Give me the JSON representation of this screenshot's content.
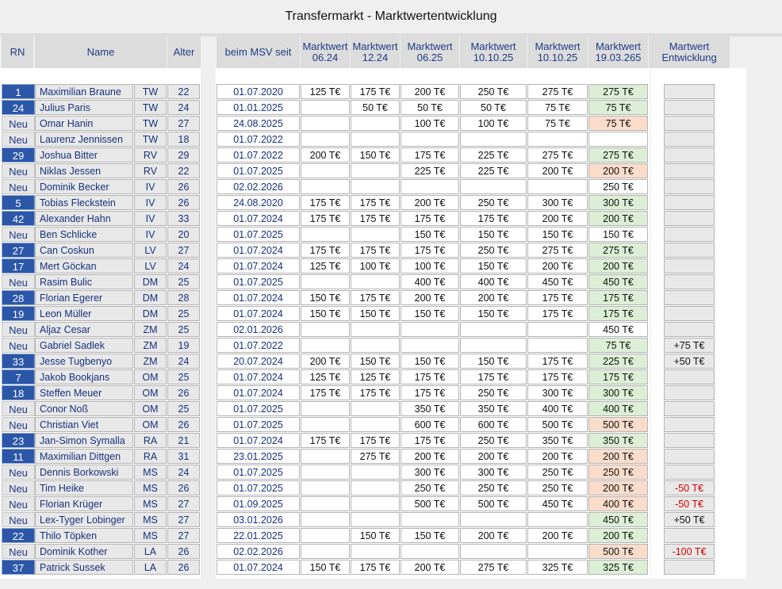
{
  "title": "Transfermarkt - Marktwertentwicklung",
  "headers": {
    "rn": "RN",
    "name": "Name",
    "age": "Alter",
    "since": "beim MSV seit",
    "values": [
      "Marktwert\n06.24",
      "Marktwert\n12.24",
      "Marktwert\n06.25",
      "Marktwert\n10.10.25",
      "Marktwert\n10.10.25",
      "Marktwert\n19.03.265"
    ],
    "dev": "Martwert\nEntwicklung"
  },
  "colors": {
    "rn_blue": "#2c57a8",
    "current_up": "#dcefd6",
    "current_down": "#fadccb",
    "negative_text": "#d00000"
  },
  "rows": [
    {
      "rn": "1",
      "name": "Maximilian Braune",
      "pos": "TW",
      "age": "22",
      "since": "01.07.2020",
      "v": [
        "125 T€",
        "175 T€",
        "200 T€",
        "250 T€",
        "275 T€",
        "275 T€"
      ],
      "cur": "green",
      "dev": ""
    },
    {
      "rn": "24",
      "name": "Julius Paris",
      "pos": "TW",
      "age": "24",
      "since": "01.01.2025",
      "v": [
        "",
        "50 T€",
        "50 T€",
        "50 T€",
        "75 T€",
        "75 T€"
      ],
      "cur": "green",
      "dev": ""
    },
    {
      "rn": "Neu",
      "name": "Omar Hanin",
      "pos": "TW",
      "age": "27",
      "since": "24.08.2025",
      "v": [
        "",
        "",
        "100 T€",
        "100 T€",
        "75 T€",
        "75 T€"
      ],
      "cur": "orange",
      "dev": ""
    },
    {
      "rn": "Neu",
      "name": "Laurenz Jennissen",
      "pos": "TW",
      "age": "18",
      "since": "01.07.2022",
      "v": [
        "",
        "",
        "",
        "",
        "",
        ""
      ],
      "cur": "white",
      "dev": ""
    },
    {
      "rn": "29",
      "name": "Joshua Bitter",
      "pos": "RV",
      "age": "29",
      "since": "01.07.2022",
      "v": [
        "200 T€",
        "150 T€",
        "175 T€",
        "225 T€",
        "275 T€",
        "275 T€"
      ],
      "cur": "green",
      "dev": ""
    },
    {
      "rn": "Neu",
      "name": "Niklas Jessen",
      "pos": "RV",
      "age": "22",
      "since": "01.07.2025",
      "v": [
        "",
        "",
        "225 T€",
        "225 T€",
        "200 T€",
        "200 T€"
      ],
      "cur": "orange",
      "dev": ""
    },
    {
      "rn": "Neu",
      "name": "Dominik Becker",
      "pos": "IV",
      "age": "26",
      "since": "02.02.2026",
      "v": [
        "",
        "",
        "",
        "",
        "",
        "250 T€"
      ],
      "cur": "white",
      "dev": ""
    },
    {
      "rn": "5",
      "name": "Tobias Fleckstein",
      "pos": "IV",
      "age": "26",
      "since": "24.08.2020",
      "v": [
        "175 T€",
        "175 T€",
        "200 T€",
        "250 T€",
        "300 T€",
        "300 T€"
      ],
      "cur": "green",
      "dev": ""
    },
    {
      "rn": "42",
      "name": "Alexander Hahn",
      "pos": "IV",
      "age": "33",
      "since": "01.07.2024",
      "v": [
        "175 T€",
        "175 T€",
        "175 T€",
        "175 T€",
        "200 T€",
        "200 T€"
      ],
      "cur": "green",
      "dev": ""
    },
    {
      "rn": "Neu",
      "name": "Ben Schlicke",
      "pos": "IV",
      "age": "20",
      "since": "01.07.2025",
      "v": [
        "",
        "",
        "150 T€",
        "150 T€",
        "150 T€",
        "150 T€"
      ],
      "cur": "white",
      "dev": ""
    },
    {
      "rn": "27",
      "name": "Can Coskun",
      "pos": "LV",
      "age": "27",
      "since": "01.07.2024",
      "v": [
        "175 T€",
        "175 T€",
        "175 T€",
        "250 T€",
        "275 T€",
        "275 T€"
      ],
      "cur": "green",
      "dev": ""
    },
    {
      "rn": "17",
      "name": "Mert Göckan",
      "pos": "LV",
      "age": "24",
      "since": "01.07.2024",
      "v": [
        "125 T€",
        "100 T€",
        "100 T€",
        "150 T€",
        "200 T€",
        "200 T€"
      ],
      "cur": "green",
      "dev": ""
    },
    {
      "rn": "Neu",
      "name": "Rasim Bulic",
      "pos": "DM",
      "age": "25",
      "since": "01.07.2025",
      "v": [
        "",
        "",
        "400 T€",
        "400 T€",
        "450 T€",
        "450 T€"
      ],
      "cur": "green",
      "dev": ""
    },
    {
      "rn": "28",
      "name": "Florian Egerer",
      "pos": "DM",
      "age": "28",
      "since": "01.07.2024",
      "v": [
        "150 T€",
        "175 T€",
        "200 T€",
        "200 T€",
        "175 T€",
        "175 T€"
      ],
      "cur": "green",
      "dev": ""
    },
    {
      "rn": "19",
      "name": "Leon Müller",
      "pos": "DM",
      "age": "25",
      "since": "01.07.2024",
      "v": [
        "150 T€",
        "150 T€",
        "150 T€",
        "150 T€",
        "175 T€",
        "175 T€"
      ],
      "cur": "green",
      "dev": ""
    },
    {
      "rn": "Neu",
      "name": "Aljaz Cesar",
      "pos": "ZM",
      "age": "25",
      "since": "02.01.2026",
      "v": [
        "",
        "",
        "",
        "",
        "",
        "450 T€"
      ],
      "cur": "white",
      "dev": ""
    },
    {
      "rn": "Neu",
      "name": "Gabriel Sadlek",
      "pos": "ZM",
      "age": "19",
      "since": "01.07.2022",
      "v": [
        "",
        "",
        "",
        "",
        "",
        "75 T€"
      ],
      "cur": "green",
      "dev": "+75 T€"
    },
    {
      "rn": "33",
      "name": "Jesse Tugbenyo",
      "pos": "ZM",
      "age": "24",
      "since": "20.07.2024",
      "v": [
        "200 T€",
        "150 T€",
        "150 T€",
        "150 T€",
        "175 T€",
        "225 T€"
      ],
      "cur": "green",
      "dev": "+50 T€"
    },
    {
      "rn": "7",
      "name": "Jakob Bookjans",
      "pos": "OM",
      "age": "25",
      "since": "01.07.2024",
      "v": [
        "125 T€",
        "125 T€",
        "175 T€",
        "175 T€",
        "175 T€",
        "175 T€"
      ],
      "cur": "green",
      "dev": ""
    },
    {
      "rn": "18",
      "name": "Steffen Meuer",
      "pos": "OM",
      "age": "26",
      "since": "01.07.2024",
      "v": [
        "175 T€",
        "175 T€",
        "175 T€",
        "250 T€",
        "300 T€",
        "300 T€"
      ],
      "cur": "green",
      "dev": ""
    },
    {
      "rn": "Neu",
      "name": "Conor Noß",
      "pos": "OM",
      "age": "25",
      "since": "01.07.2025",
      "v": [
        "",
        "",
        "350 T€",
        "350 T€",
        "400 T€",
        "400 T€"
      ],
      "cur": "green",
      "dev": ""
    },
    {
      "rn": "Neu",
      "name": "Christian Viet",
      "pos": "OM",
      "age": "26",
      "since": "01.07.2025",
      "v": [
        "",
        "",
        "600 T€",
        "600 T€",
        "500 T€",
        "500 T€"
      ],
      "cur": "orange",
      "dev": ""
    },
    {
      "rn": "23",
      "name": "Jan-Simon Symalla",
      "pos": "RA",
      "age": "21",
      "since": "01.07.2024",
      "v": [
        "175 T€",
        "175 T€",
        "175 T€",
        "250 T€",
        "350 T€",
        "350 T€"
      ],
      "cur": "green",
      "dev": ""
    },
    {
      "rn": "11",
      "name": "Maximilian Dittgen",
      "pos": "RA",
      "age": "31",
      "since": "23.01.2025",
      "v": [
        "",
        "275 T€",
        "200 T€",
        "200 T€",
        "200 T€",
        "200 T€"
      ],
      "cur": "orange",
      "dev": ""
    },
    {
      "rn": "Neu",
      "name": "Dennis Borkowski",
      "pos": "MS",
      "age": "24",
      "since": "01.07.2025",
      "v": [
        "",
        "",
        "300 T€",
        "300 T€",
        "250 T€",
        "250 T€"
      ],
      "cur": "orange",
      "dev": ""
    },
    {
      "rn": "Neu",
      "name": "Tim Heike",
      "pos": "MS",
      "age": "26",
      "since": "01.07.2025",
      "v": [
        "",
        "",
        "250 T€",
        "250 T€",
        "250 T€",
        "200 T€"
      ],
      "cur": "orange",
      "dev": "-50 T€"
    },
    {
      "rn": "Neu",
      "name": "Florian Krüger",
      "pos": "MS",
      "age": "27",
      "since": "01.09.2025",
      "v": [
        "",
        "",
        "500 T€",
        "500 T€",
        "450 T€",
        "400 T€"
      ],
      "cur": "orange",
      "dev": "-50 T€"
    },
    {
      "rn": "Neu",
      "name": "Lex-Tyger Lobinger",
      "pos": "MS",
      "age": "27",
      "since": "03.01.2026",
      "v": [
        "",
        "",
        "",
        "",
        "",
        "450 T€"
      ],
      "cur": "green",
      "dev": "+50 T€"
    },
    {
      "rn": "22",
      "name": "Thilo Töpken",
      "pos": "MS",
      "age": "27",
      "since": "22.01.2025",
      "v": [
        "",
        "150 T€",
        "150 T€",
        "200 T€",
        "200 T€",
        "200 T€"
      ],
      "cur": "green",
      "dev": ""
    },
    {
      "rn": "Neu",
      "name": "Dominik Kother",
      "pos": "LA",
      "age": "26",
      "since": "02.02.2026",
      "v": [
        "",
        "",
        "",
        "",
        "",
        "500 T€"
      ],
      "cur": "orange",
      "dev": "-100 T€"
    },
    {
      "rn": "37",
      "name": "Patrick Sussek",
      "pos": "LA",
      "age": "26",
      "since": "01.07.2024",
      "v": [
        "150 T€",
        "175 T€",
        "200 T€",
        "275 T€",
        "325 T€",
        "325 T€"
      ],
      "cur": "green",
      "dev": ""
    }
  ]
}
